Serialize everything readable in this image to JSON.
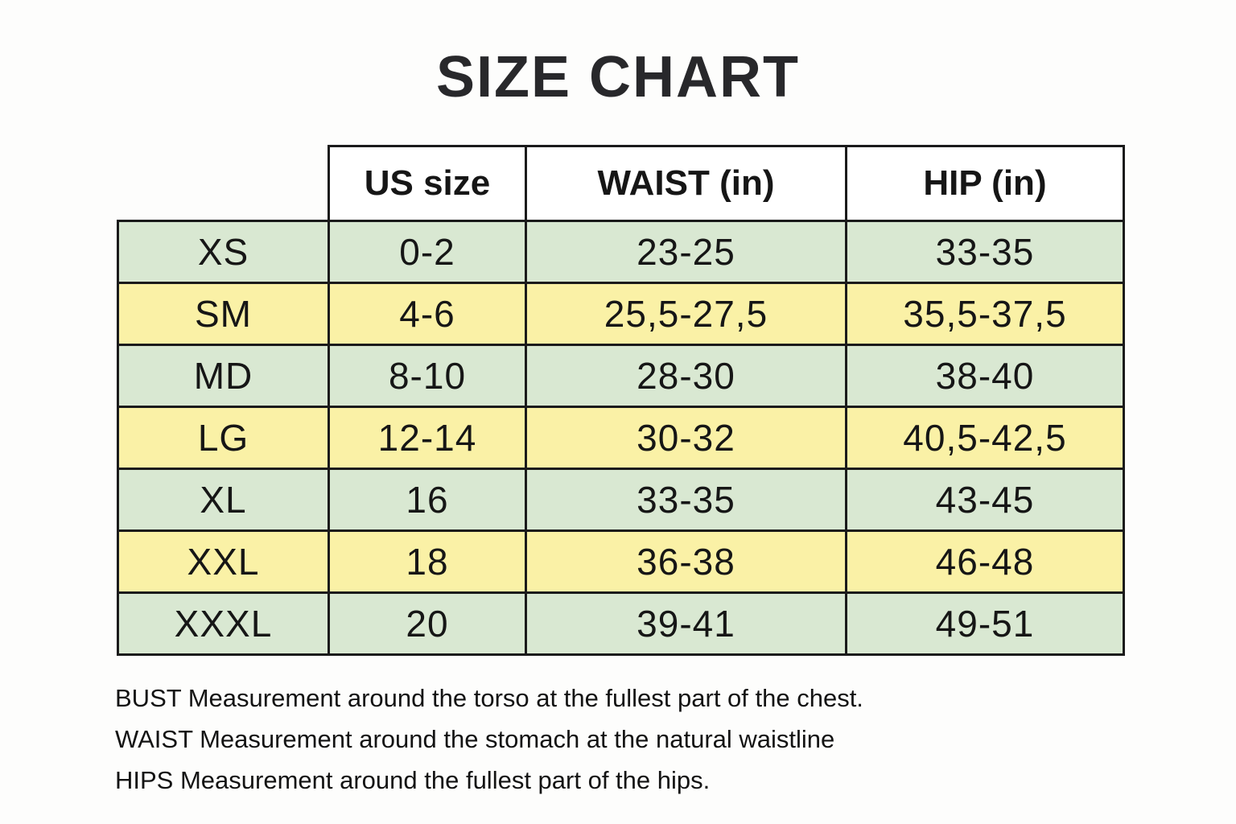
{
  "page": {
    "title": "SIZE CHART"
  },
  "chart_data": {
    "type": "table",
    "title": "SIZE CHART",
    "columns": [
      "US size",
      "WAIST (in)",
      "HIP (in)"
    ],
    "rows": [
      {
        "size": "XS",
        "us": "0-2",
        "waist": "23-25",
        "hip": "33-35"
      },
      {
        "size": "SM",
        "us": "4-6",
        "waist": "25,5-27,5",
        "hip": "35,5-37,5"
      },
      {
        "size": "MD",
        "us": "8-10",
        "waist": "28-30",
        "hip": "38-40"
      },
      {
        "size": "LG",
        "us": "12-14",
        "waist": "30-32",
        "hip": "40,5-42,5"
      },
      {
        "size": "XL",
        "us": "16",
        "waist": "33-35",
        "hip": "43-45"
      },
      {
        "size": "XXL",
        "us": "18",
        "waist": "36-38",
        "hip": "46-48"
      },
      {
        "size": "XXXL",
        "us": "20",
        "waist": "39-41",
        "hip": "49-51"
      }
    ],
    "layout": {
      "striped_row_colors": [
        "green",
        "yellow"
      ],
      "header_background": "#ffffff",
      "corner_cell": "empty-no-border"
    }
  },
  "notes": {
    "bust": "BUST Measurement around the torso at the fullest part of the chest.",
    "waist": "WAIST Measurement around the stomach at the natural waistline",
    "hips": "HIPS Measurement around the fullest part of the hips."
  },
  "colors": {
    "row_green": "#d9e8d2",
    "row_yellow": "#faf1a6",
    "border": "#1b1b1b",
    "title_text": "#28282b"
  }
}
